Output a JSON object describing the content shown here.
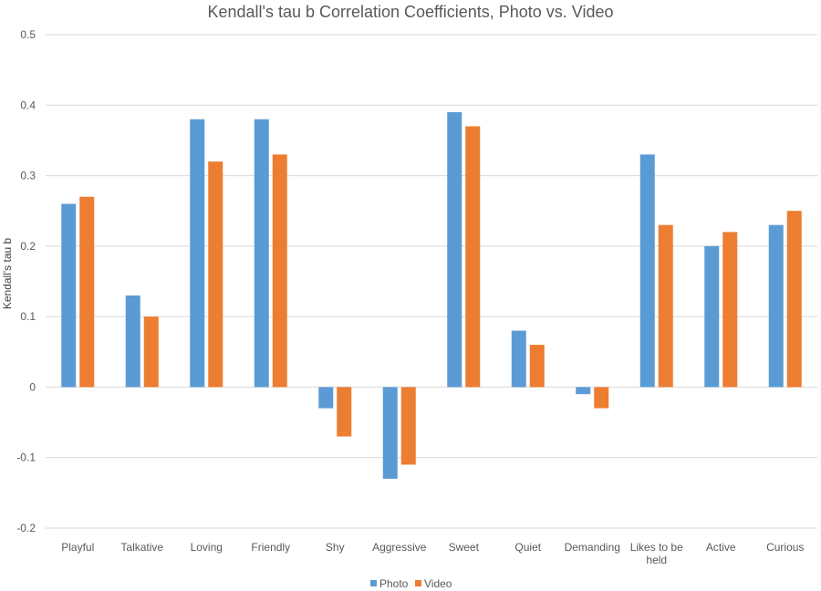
{
  "chart_data": {
    "type": "bar",
    "title": "Kendall's tau b Correlation Coefficients, Photo vs. Video",
    "ylabel": "Kendall's tau b",
    "xlabel": "",
    "ylim": [
      -0.2,
      0.5
    ],
    "yticks": [
      0.5,
      0.4,
      0.3,
      0.2,
      0.1,
      0,
      -0.1,
      -0.2
    ],
    "ytick_labels": [
      "0.5",
      "0.4",
      "0.3",
      "0.2",
      "0.1",
      "0",
      "-0.1",
      "-0.2"
    ],
    "grid": true,
    "legend_position": "bottom",
    "categories": [
      [
        "Playful"
      ],
      [
        "Talkative"
      ],
      [
        "Loving"
      ],
      [
        "Friendly"
      ],
      [
        "Shy"
      ],
      [
        "Aggressive"
      ],
      [
        "Sweet"
      ],
      [
        "Quiet"
      ],
      [
        "Demanding"
      ],
      [
        "Likes to be",
        "held"
      ],
      [
        "Active"
      ],
      [
        "Curious"
      ]
    ],
    "series": [
      {
        "name": "Photo",
        "color": "#5B9BD5",
        "values": [
          0.26,
          0.13,
          0.38,
          0.38,
          -0.03,
          -0.13,
          0.39,
          0.08,
          -0.01,
          0.33,
          0.2,
          0.23
        ]
      },
      {
        "name": "Video",
        "color": "#ED7D31",
        "values": [
          0.27,
          0.1,
          0.32,
          0.33,
          -0.07,
          -0.11,
          0.37,
          0.06,
          -0.03,
          0.23,
          0.22,
          0.25
        ]
      }
    ]
  }
}
